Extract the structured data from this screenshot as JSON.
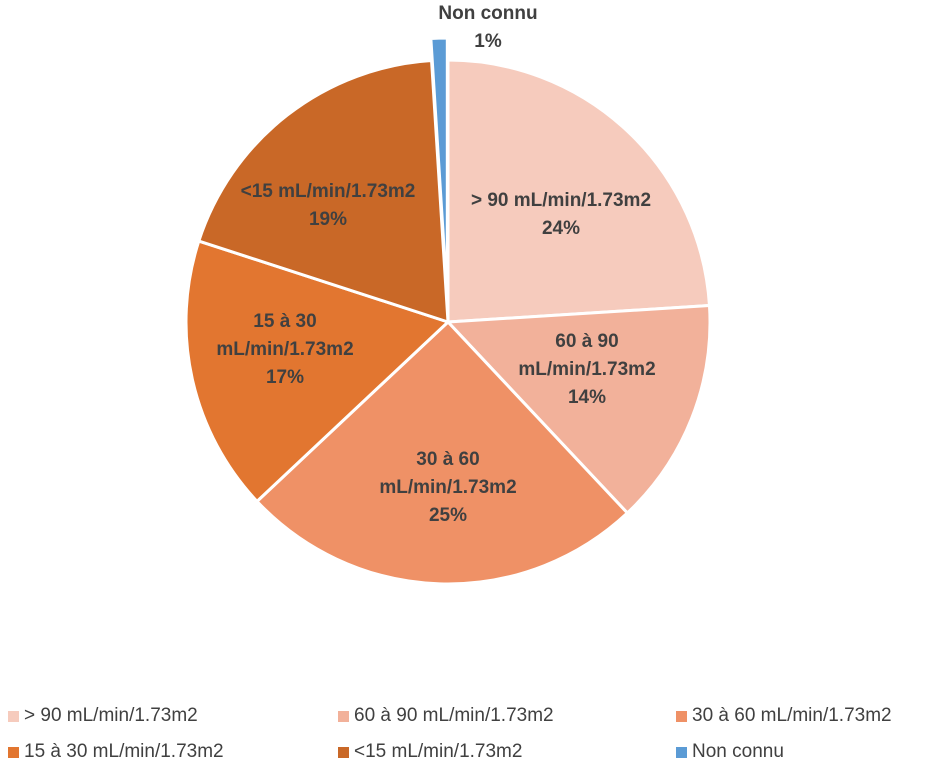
{
  "chart_data": {
    "type": "pie",
    "slices": [
      {
        "label": "> 90 mL/min/1.73m2",
        "value": 24,
        "value_label": "24%",
        "color": "#F6CBBD",
        "label_lines": [
          "> 90 mL/min/1.73m2",
          "24%"
        ]
      },
      {
        "label": "60 à 90 mL/min/1.73m2",
        "value": 14,
        "value_label": "14%",
        "color": "#F2B19A",
        "label_lines": [
          "60 à 90",
          "mL/min/1.73m2",
          "14%"
        ]
      },
      {
        "label": "30 à 60 mL/min/1.73m2",
        "value": 25,
        "value_label": "25%",
        "color": "#EF9166",
        "label_lines": [
          "30 à 60",
          "mL/min/1.73m2",
          "25%"
        ]
      },
      {
        "label": "15 à 30 mL/min/1.73m2",
        "value": 17,
        "value_label": "17%",
        "color": "#E27630",
        "label_lines": [
          "15 à 30",
          "mL/min/1.73m2",
          "17%"
        ]
      },
      {
        "label": "<15 mL/min/1.73m2",
        "value": 19,
        "value_label": "19%",
        "color": "#C96827",
        "label_lines": [
          "<15 mL/min/1.73m2",
          "19%"
        ]
      },
      {
        "label": "Non connu",
        "value": 1,
        "value_label": "1%",
        "color": "#5B9BD5",
        "exploded": true,
        "label_lines": [
          "Non connu",
          "1%"
        ]
      }
    ],
    "legend_position": "bottom"
  }
}
